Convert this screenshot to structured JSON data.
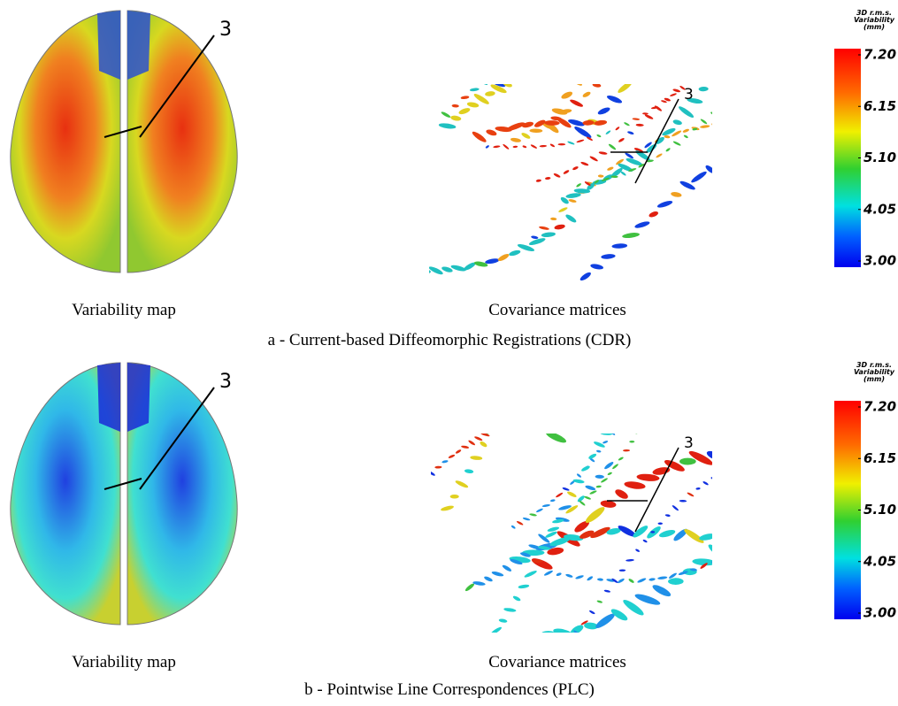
{
  "panels": [
    {
      "caption": "a - Current-based Diffeomorphic Registrations (CDR)",
      "left_label": "Variability map",
      "right_label": "Covariance matrices",
      "left_annotation": "3",
      "right_annotation": "3",
      "colorbar": {
        "title": [
          "3D r.m.s.",
          "Variability",
          "(mm)"
        ],
        "ticks": [
          {
            "value": 7.2,
            "label": "7.20"
          },
          {
            "value": 6.15,
            "label": "6.15"
          },
          {
            "value": 5.1,
            "label": "5.10"
          },
          {
            "value": 4.05,
            "label": "4.05"
          },
          {
            "value": 3,
            "label": "3.00"
          }
        ]
      }
    },
    {
      "caption": "b - Pointwise Line Correspondences (PLC)",
      "left_label": "Variability map",
      "right_label": "Covariance matrices",
      "left_annotation": "3",
      "right_annotation": "3",
      "colorbar": {
        "title": [
          "3D r.m.s.",
          "Variability",
          "(mm)"
        ],
        "ticks": [
          {
            "value": 7.2,
            "label": "7.20"
          },
          {
            "value": 6.15,
            "label": "6.15"
          },
          {
            "value": 5.1,
            "label": "5.10"
          },
          {
            "value": 4.05,
            "label": "4.05"
          },
          {
            "value": 3,
            "label": "3.00"
          }
        ]
      }
    }
  ]
}
